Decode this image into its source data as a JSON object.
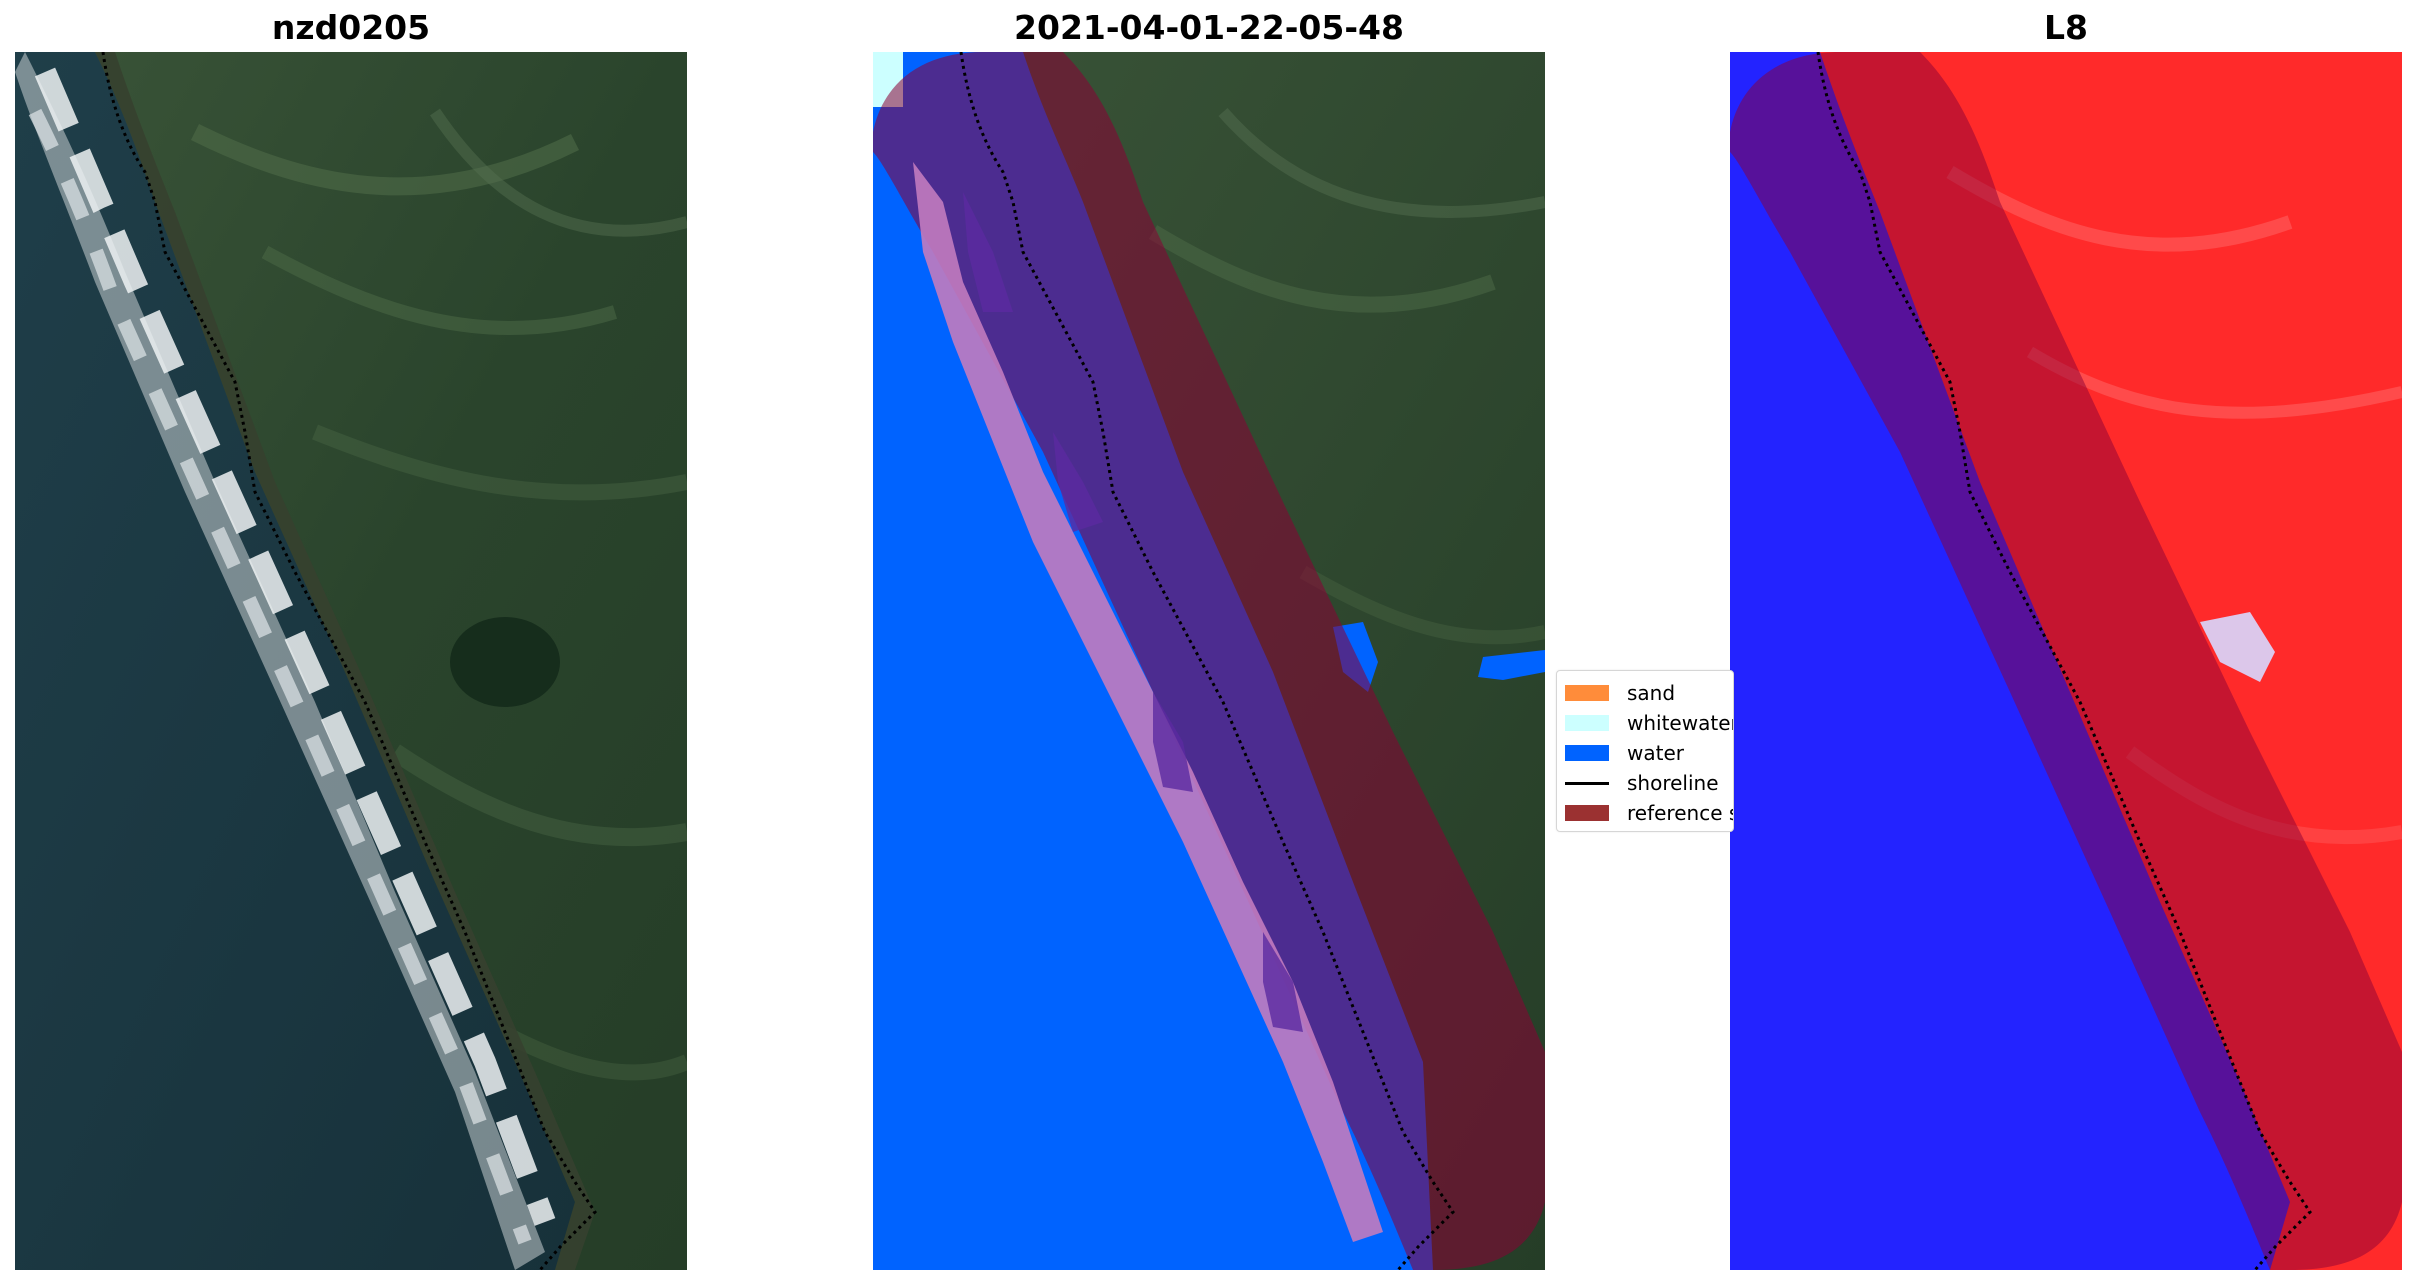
{
  "figure": {
    "panels": [
      {
        "title": "nzd0205"
      },
      {
        "title": "2021-04-01-22-05-48"
      },
      {
        "title": "L8"
      }
    ],
    "legend": {
      "items": [
        {
          "label": "sand",
          "color": "#ff8c3a",
          "kind": "patch"
        },
        {
          "label": "whitewater",
          "color": "#ccffff",
          "kind": "patch"
        },
        {
          "label": "water",
          "color": "#0063ff",
          "kind": "patch"
        },
        {
          "label": "shoreline",
          "color": "#000000",
          "kind": "line"
        },
        {
          "label": "reference shoreline buffer",
          "color": "#9b3131",
          "kind": "patch"
        }
      ]
    },
    "colors": {
      "ocean_rgb": "#1d3a45",
      "land_rgb": "#2c4a2c",
      "water_class": "#0063ff",
      "buffer_overlay": "#8b0035",
      "mndwi_high": "#1e1eff",
      "mndwi_low": "#ff2a2a"
    }
  }
}
